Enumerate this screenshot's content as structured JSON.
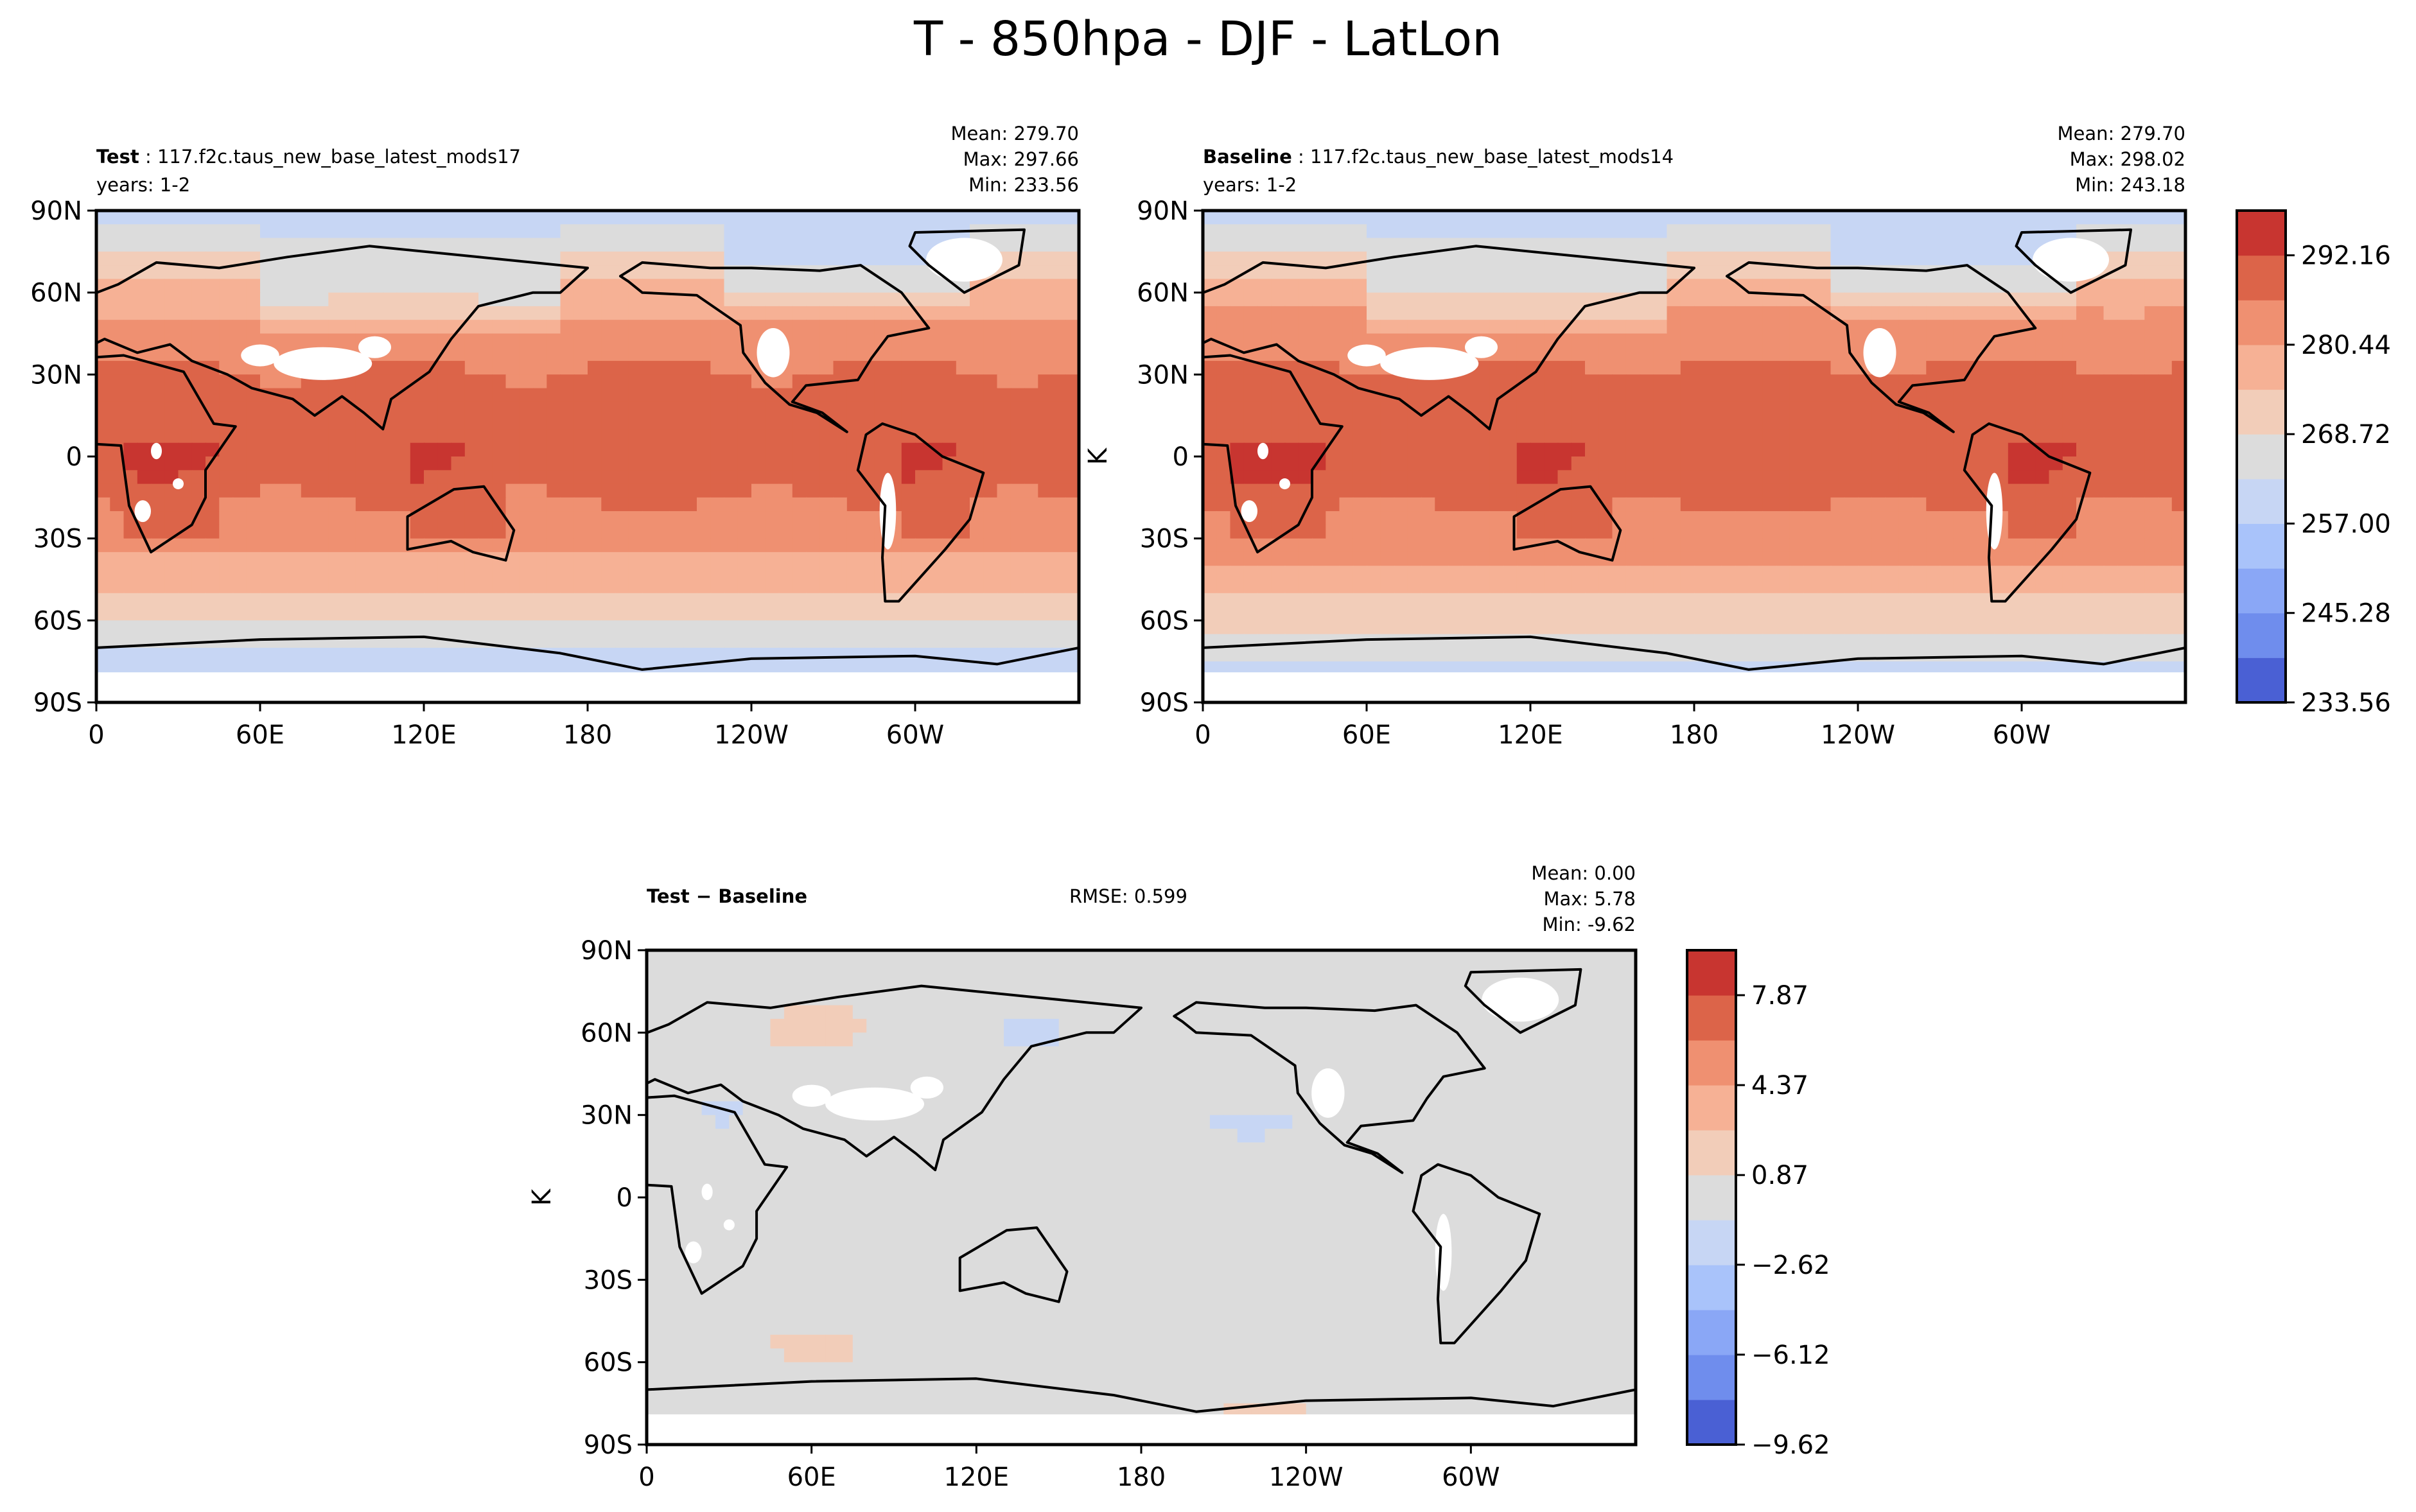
{
  "figure": {
    "title": "T - 850hpa - DJF - LatLon"
  },
  "chart_data": [
    {
      "type": "heatmap",
      "panel": "Test",
      "label_bold": "Test",
      "label_rest": "117.f2c.taus_new_base_latest_mods17",
      "years": "years: 1-2",
      "stats": {
        "mean": "Mean: 279.70",
        "max": "Max: 297.66",
        "min": "Min: 233.56"
      },
      "x_ticks": [
        "0",
        "60E",
        "120E",
        "180",
        "120W",
        "60W"
      ],
      "y_ticks": [
        "90N",
        "60N",
        "30N",
        "0",
        "30S",
        "60S",
        "90S"
      ],
      "xlim": [
        0,
        360
      ],
      "ylim": [
        -90,
        90
      ],
      "ylabel": "",
      "field": "model_latlon",
      "shift": 0
    },
    {
      "type": "heatmap",
      "panel": "Baseline",
      "label_bold": "Baseline",
      "label_rest": "117.f2c.taus_new_base_latest_mods14",
      "years": "years: 1-2",
      "stats": {
        "mean": "Mean: 279.70",
        "max": "Max: 298.02",
        "min": "Min: 243.18"
      },
      "x_ticks": [
        "0",
        "60E",
        "120E",
        "180",
        "120W",
        "60W"
      ],
      "y_ticks": [
        "90N",
        "60N",
        "30N",
        "0",
        "30S",
        "60S",
        "90S"
      ],
      "xlim": [
        0,
        360
      ],
      "ylim": [
        -90,
        90
      ],
      "ylabel": "K",
      "field": "model_latlon",
      "shift": 0.5,
      "colorbar": {
        "levels": [
          233.56,
          239.42,
          245.28,
          251.14,
          257.0,
          262.86,
          268.72,
          274.58,
          280.44,
          286.3,
          292.16,
          298.02
        ],
        "tick_labels": [
          "292.16",
          "280.44",
          "268.72",
          "257.00",
          "245.28",
          "233.56"
        ],
        "colors": [
          "#4a60d4",
          "#6f8ded",
          "#8aa7f6",
          "#a9c3fa",
          "#c7d6f4",
          "#dcdcdc",
          "#f2cdb9",
          "#f6b195",
          "#ef9071",
          "#dc6449",
          "#c83530"
        ]
      }
    },
    {
      "type": "heatmap",
      "panel": "Difference",
      "label_bold": "Test − Baseline",
      "rmse": "RMSE: 0.599",
      "stats": {
        "mean": "Mean:  0.00",
        "max": "Max:  5.78",
        "min": "Min: -9.62"
      },
      "x_ticks": [
        "0",
        "60E",
        "120E",
        "180",
        "120W",
        "60W"
      ],
      "y_ticks": [
        "90N",
        "60N",
        "30N",
        "0",
        "30S",
        "60S",
        "90S"
      ],
      "xlim": [
        0,
        360
      ],
      "ylim": [
        -90,
        90
      ],
      "ylabel": "K",
      "field": "difference_latlon",
      "colorbar": {
        "levels": [
          -9.62,
          -7.87,
          -6.12,
          -4.37,
          -2.62,
          -0.87,
          0.87,
          2.62,
          4.37,
          6.12,
          7.87,
          9.62
        ],
        "tick_labels": [
          "7.87",
          "4.37",
          "0.87",
          "−2.62",
          "−6.12",
          "−9.62"
        ],
        "colors": [
          "#4a60d4",
          "#6f8ded",
          "#8aa7f6",
          "#a9c3fa",
          "#c7d6f4",
          "#dcdcdc",
          "#f2cdb9",
          "#f6b195",
          "#ef9071",
          "#dc6449",
          "#c83530"
        ]
      }
    }
  ]
}
